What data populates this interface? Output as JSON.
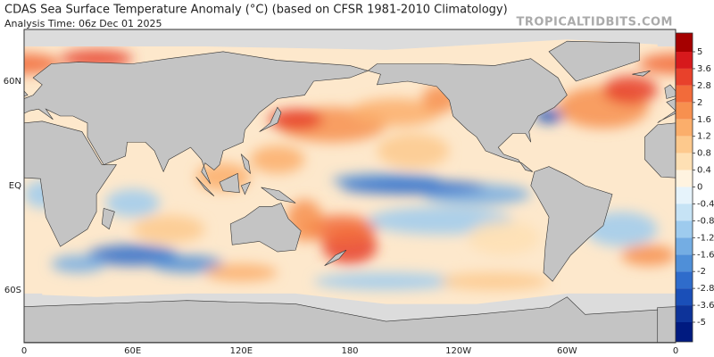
{
  "header": {
    "title": "CDAS Sea Surface Temperature Anomaly (°C) (based on CFSR 1981-2010 Climatology)",
    "analysis_time": "Analysis Time: 06z Dec 01 2025",
    "source": "TROPICALTIDBITS.COM"
  },
  "map": {
    "lon_ticks": [
      0,
      {
        "value": 60,
        "label": "60E"
      },
      {
        "value": 120,
        "label": "120E"
      },
      180,
      {
        "value": 240,
        "label": "120W"
      },
      {
        "value": 300,
        "label": "60W"
      },
      {
        "value": 360,
        "label": "0"
      }
    ],
    "lat_ticks": [
      {
        "value": 60,
        "label": "60N"
      },
      {
        "value": 0,
        "label": "EQ"
      },
      {
        "value": -60,
        "label": "60S"
      }
    ]
  },
  "colorbar": {
    "ticks": [
      5,
      3.6,
      2.8,
      2,
      1.6,
      1.2,
      0.8,
      0.4,
      0,
      -0.4,
      -0.8,
      -1.2,
      -1.6,
      -2,
      -2.8,
      -3.6,
      -5
    ],
    "colors": [
      "#a50000",
      "#d7191c",
      "#e8412b",
      "#f26b3a",
      "#f7904f",
      "#fbae6b",
      "#fdc98d",
      "#fee0b4",
      "#fff3e0",
      "#e6f3fb",
      "#c6e3f5",
      "#9ecbee",
      "#74ade3",
      "#4f8fd8",
      "#2f6ccb",
      "#1a4fb8",
      "#0d3399",
      "#001a80"
    ]
  }
}
